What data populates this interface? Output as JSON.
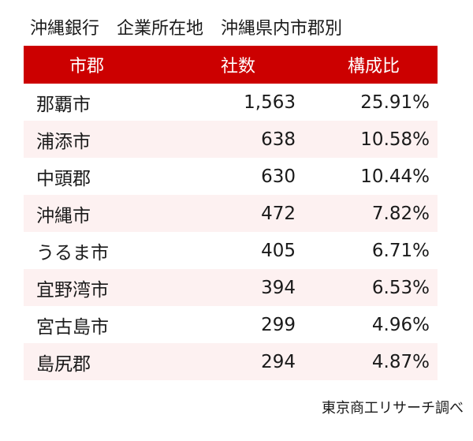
{
  "title": "沖縄銀行　企業所在地　沖縄県内市郡別",
  "colors": {
    "header_bg": "#cc0000",
    "header_text": "#ffffff",
    "alt_row": "#fdf1f1"
  },
  "table": {
    "headers": [
      "市郡",
      "社数",
      "構成比"
    ],
    "rows": [
      [
        "那覇市",
        "1,563",
        "25.91%"
      ],
      [
        "浦添市",
        "638",
        "10.58%"
      ],
      [
        "中頭郡",
        "630",
        "10.44%"
      ],
      [
        "沖縄市",
        "472",
        "7.82%"
      ],
      [
        "うるま市",
        "405",
        "6.71%"
      ],
      [
        "宜野湾市",
        "394",
        "6.53%"
      ],
      [
        "宮古島市",
        "299",
        "4.96%"
      ],
      [
        "島尻郡",
        "294",
        "4.87%"
      ]
    ]
  },
  "source": "東京商工リサーチ調べ"
}
